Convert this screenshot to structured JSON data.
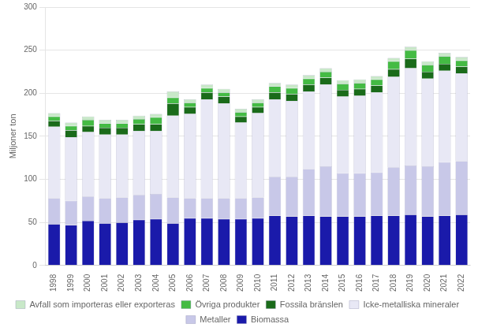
{
  "chart_data": {
    "type": "bar",
    "stacked": true,
    "grid": true,
    "legend": "bottom",
    "ylabel": "Miljoner ton",
    "categories": [
      "1998",
      "1999",
      "2000",
      "2001",
      "2002",
      "2003",
      "2004",
      "2005",
      "2006",
      "2007",
      "2008",
      "2009",
      "2010",
      "2011",
      "2012",
      "2013",
      "2014",
      "2015",
      "2016",
      "2017",
      "2018",
      "2019",
      "2020",
      "2021",
      "2022"
    ],
    "series": [
      {
        "name": "Biomassa",
        "color": "#1a1aaa",
        "values": [
          48,
          47,
          52,
          49,
          50,
          53,
          54,
          49,
          55,
          55,
          54,
          54,
          55,
          58,
          57,
          58,
          57,
          57,
          57,
          58,
          58,
          59,
          57,
          58,
          59
        ]
      },
      {
        "name": "Metaller",
        "color": "#c8c8e8",
        "values": [
          30,
          28,
          28,
          29,
          29,
          29,
          29,
          30,
          23,
          23,
          24,
          24,
          24,
          45,
          46,
          54,
          58,
          50,
          50,
          50,
          56,
          57,
          58,
          62,
          62
        ]
      },
      {
        "name": "Icke-metalliska mineraler",
        "color": "#e8e8f5",
        "values": [
          83,
          74,
          75,
          74,
          73,
          74,
          73,
          95,
          98,
          115,
          110,
          88,
          98,
          90,
          88,
          90,
          95,
          89,
          90,
          93,
          105,
          113,
          102,
          106,
          102
        ]
      },
      {
        "name": "Fossila bränslen",
        "color": "#1a6b1a",
        "values": [
          7,
          8,
          7,
          8,
          8,
          8,
          8,
          14,
          8,
          8,
          8,
          7,
          7,
          8,
          8,
          8,
          8,
          8,
          8,
          8,
          9,
          11,
          8,
          8,
          8
        ]
      },
      {
        "name": "Övriga produkter",
        "color": "#44bb44",
        "values": [
          5,
          5,
          7,
          5,
          5,
          6,
          8,
          7,
          5,
          5,
          5,
          5,
          5,
          7,
          7,
          7,
          7,
          7,
          7,
          7,
          9,
          10,
          8,
          9,
          7
        ]
      },
      {
        "name": "Avfall som importeras eller exporteras",
        "color": "#c8e8c8",
        "values": [
          4,
          4,
          4,
          4,
          4,
          4,
          4,
          7,
          4,
          4,
          4,
          4,
          4,
          4,
          4,
          4,
          4,
          4,
          4,
          4,
          4,
          4,
          4,
          4,
          4
        ]
      }
    ],
    "ylim": [
      0,
      300
    ],
    "yticks": [
      0,
      50,
      100,
      150,
      200,
      250,
      300
    ]
  }
}
